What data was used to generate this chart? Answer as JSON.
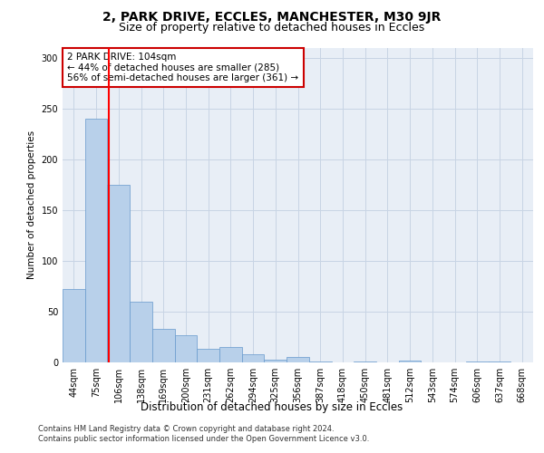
{
  "title1": "2, PARK DRIVE, ECCLES, MANCHESTER, M30 9JR",
  "title2": "Size of property relative to detached houses in Eccles",
  "xlabel": "Distribution of detached houses by size in Eccles",
  "ylabel": "Number of detached properties",
  "bar_labels": [
    "44sqm",
    "75sqm",
    "106sqm",
    "138sqm",
    "169sqm",
    "200sqm",
    "231sqm",
    "262sqm",
    "294sqm",
    "325sqm",
    "356sqm",
    "387sqm",
    "418sqm",
    "450sqm",
    "481sqm",
    "512sqm",
    "543sqm",
    "574sqm",
    "606sqm",
    "637sqm",
    "668sqm"
  ],
  "bar_values": [
    72,
    240,
    175,
    60,
    33,
    27,
    13,
    15,
    8,
    3,
    5,
    1,
    0,
    1,
    0,
    2,
    0,
    0,
    1,
    1,
    0
  ],
  "bar_color": "#b8d0ea",
  "bar_edge_color": "#6699cc",
  "grid_color": "#c8d4e4",
  "bg_color": "#e8eef6",
  "red_line_x": 1.58,
  "annotation_text": "2 PARK DRIVE: 104sqm\n← 44% of detached houses are smaller (285)\n56% of semi-detached houses are larger (361) →",
  "annotation_box_color": "#ffffff",
  "annotation_box_edge": "#cc0000",
  "footnote1": "Contains HM Land Registry data © Crown copyright and database right 2024.",
  "footnote2": "Contains public sector information licensed under the Open Government Licence v3.0.",
  "ylim": [
    0,
    310
  ],
  "yticks": [
    0,
    50,
    100,
    150,
    200,
    250,
    300
  ],
  "title1_fontsize": 10,
  "title2_fontsize": 9,
  "xlabel_fontsize": 8.5,
  "ylabel_fontsize": 7.5,
  "tick_fontsize": 7,
  "footnote_fontsize": 6
}
